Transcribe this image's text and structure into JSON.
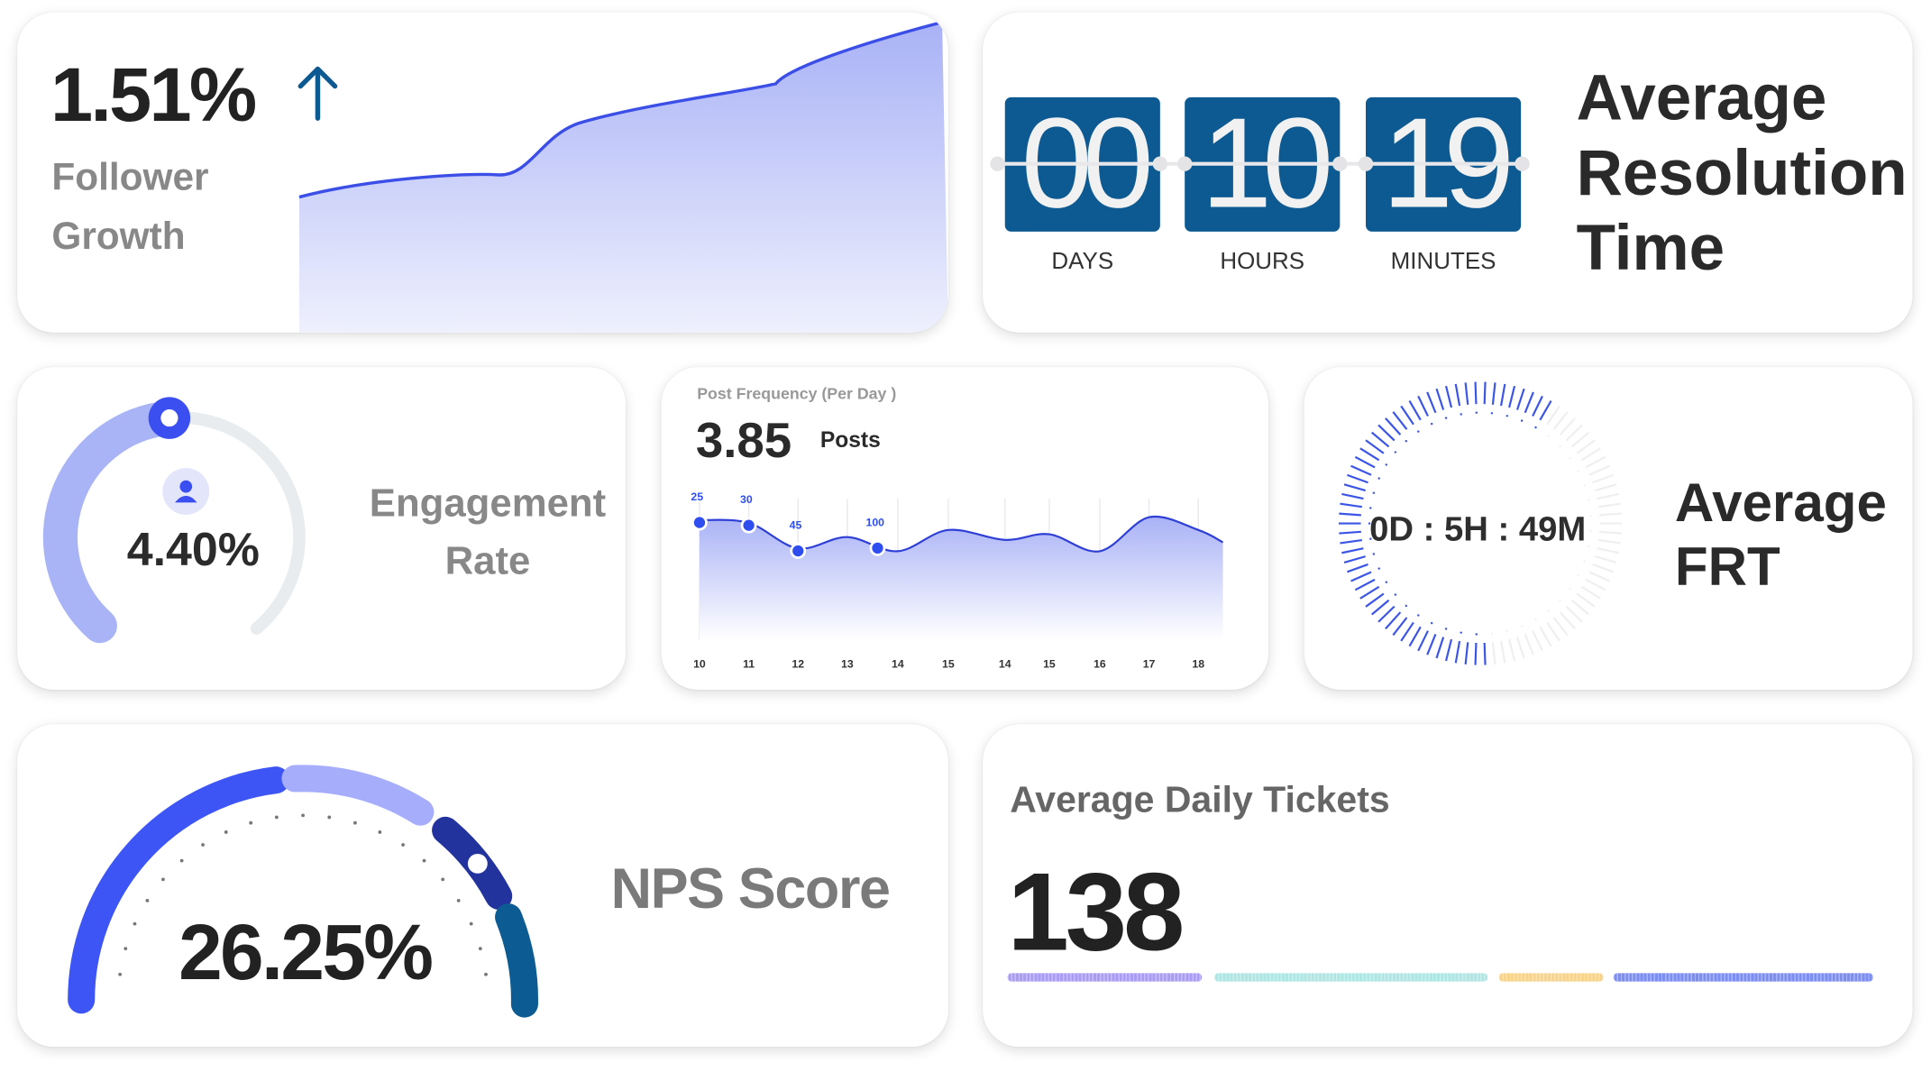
{
  "follower_growth": {
    "value": "1.51%",
    "label_line1": "Follower",
    "label_line2": "Growth",
    "trend_icon": "arrow-up-icon",
    "accent": "#3b4ee6"
  },
  "resolution_time": {
    "units": [
      {
        "value": "00",
        "label": "DAYS"
      },
      {
        "value": "10",
        "label": "HOURS"
      },
      {
        "value": "19",
        "label": "MINUTES"
      }
    ],
    "title_line1": "Average",
    "title_line2": "Resolution",
    "title_line3": "Time",
    "tile_color": "#0d5a92"
  },
  "engagement": {
    "value": "4.40%",
    "label_line1": "Engagement",
    "label_line2": "Rate",
    "icon": "user-icon",
    "arc_color": "#a9b4f6",
    "knob_color": "#3b4ff0"
  },
  "post_frequency": {
    "title": "Post Frequency (Per Day )",
    "value": "3.85",
    "unit": "Posts"
  },
  "chart_data": {
    "type": "area",
    "title": "Post Frequency (Per Day )",
    "categories": [
      "10",
      "11",
      "12",
      "13",
      "14",
      "15",
      "14",
      "15",
      "16",
      "17",
      "18"
    ],
    "values": [
      85,
      83,
      65,
      73,
      63,
      78,
      71,
      75,
      63,
      87,
      78
    ],
    "point_labels": [
      {
        "category_index": 0,
        "label": "25"
      },
      {
        "category_index": 1,
        "label": "30"
      },
      {
        "category_index": 2,
        "label": "45"
      },
      {
        "category_index": 3.6,
        "label": "100"
      }
    ],
    "grid": true,
    "color": "#3b4ee6"
  },
  "frt": {
    "value": "0D : 5H : 49M",
    "title_line1": "Average",
    "title_line2": "FRT",
    "progress_percent": 60,
    "color": "#3b55e6"
  },
  "nps": {
    "value": "26.25%",
    "label": "NPS Score",
    "segment_colors": [
      "#3d55f5",
      "#a6aefb",
      "#22339d",
      "#0c5c93"
    ]
  },
  "tickets": {
    "title": "Average Daily Tickets",
    "value": "138",
    "segment_colors": [
      "#a99cf5",
      "#aee6e3",
      "#f8d38a",
      "#7d8ef2"
    ]
  }
}
